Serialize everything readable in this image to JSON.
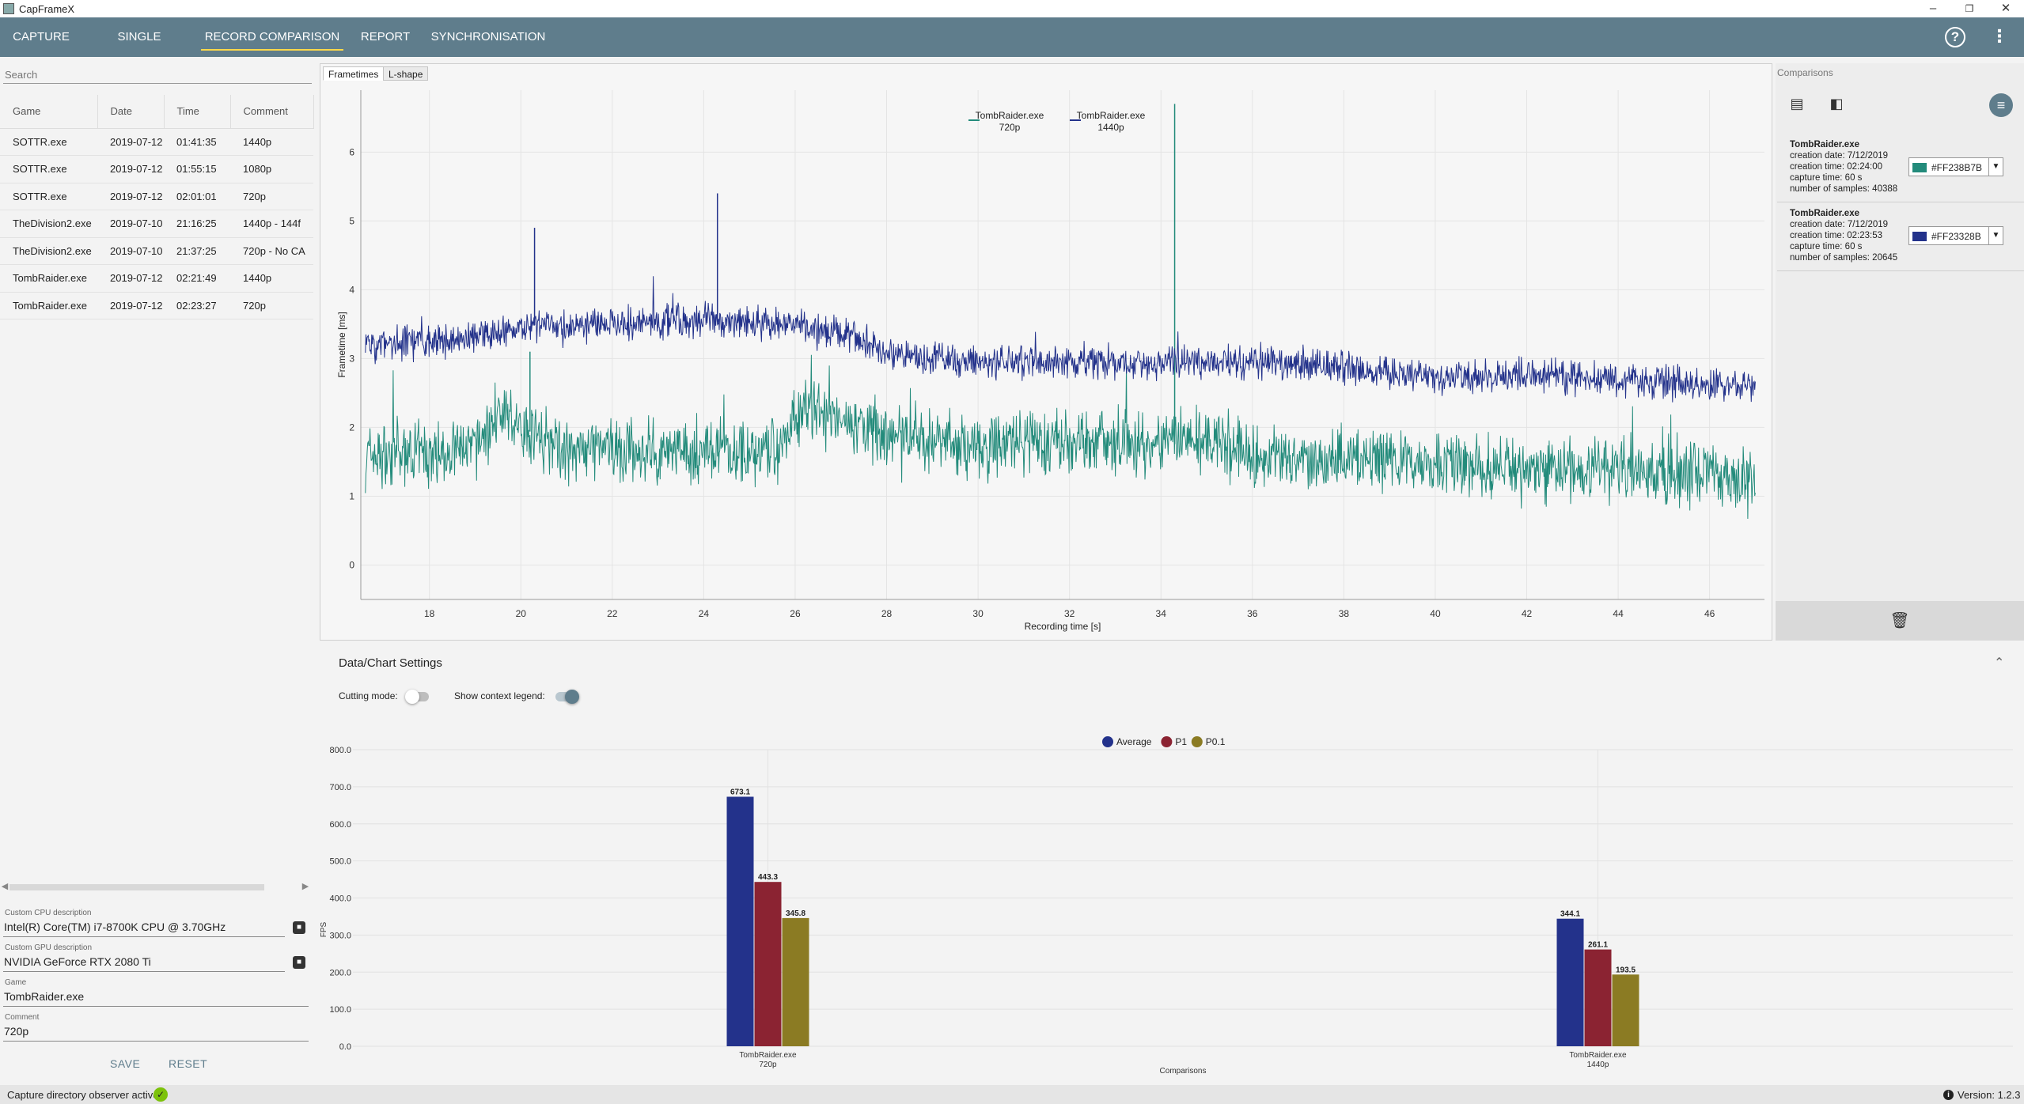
{
  "app": {
    "title": "CapFrameX",
    "version_label": "Version: 1.2.3"
  },
  "window": {
    "minimize": "–",
    "restore": "❐",
    "close": "✕"
  },
  "nav": {
    "tabs": [
      "CAPTURE",
      "SINGLE RECORD",
      "RECORD COMPARISON",
      "REPORT",
      "SYNCHRONISATION"
    ],
    "active": "RECORD COMPARISON",
    "help_icon": "?",
    "menu_icon": "⋮"
  },
  "left": {
    "search_placeholder": "Search",
    "columns": [
      "Game",
      "Date",
      "Time",
      "Comment"
    ],
    "records": [
      [
        "SOTTR.exe",
        "2019-07-12",
        "01:41:35",
        "1440p"
      ],
      [
        "SOTTR.exe",
        "2019-07-12",
        "01:55:15",
        "1080p"
      ],
      [
        "SOTTR.exe",
        "2019-07-12",
        "02:01:01",
        "720p"
      ],
      [
        "TheDivision2.exe",
        "2019-07-10",
        "21:16:25",
        "1440p - 144f"
      ],
      [
        "TheDivision2.exe",
        "2019-07-10",
        "21:37:25",
        "720p - No CA"
      ],
      [
        "TombRaider.exe",
        "2019-07-12",
        "02:21:49",
        "1440p"
      ],
      [
        "TombRaider.exe",
        "2019-07-12",
        "02:23:27",
        "720p"
      ]
    ],
    "scroll_left": "◀",
    "scroll_right": "▶",
    "cpu_label": "Custom CPU description",
    "cpu_value": "Intel(R) Core(TM) i7-8700K CPU @ 3.70GHz",
    "gpu_label": "Custom GPU description",
    "gpu_value": "NVIDIA GeForce RTX 2080 Ti",
    "game_label": "Game",
    "game_value": "TombRaider.exe",
    "comment_label": "Comment",
    "comment_value": "720p",
    "save": "SAVE",
    "reset": "RESET"
  },
  "chart_tabs": [
    "Frametimes",
    "L-shape"
  ],
  "comparisons": {
    "title": "Comparisons",
    "items": [
      {
        "name": "TombRaider.exe",
        "creation": "creation date: 7/12/2019",
        "capture_time": "creation time: 02:24:00",
        "duration": "capture time: 60 s",
        "samples": "number of samples: 40388",
        "color_hex": "#FF238B7B",
        "color": "#238B7B"
      },
      {
        "name": "TombRaider.exe",
        "creation": "creation date: 7/12/2019",
        "capture_time": "creation time: 02:23:53",
        "duration": "capture time: 60 s",
        "samples": "number of samples: 20645",
        "color_hex": "#FF23328B",
        "color": "#23328B"
      }
    ]
  },
  "settings": {
    "title": "Data/Chart Settings",
    "cutting_mode": "Cutting mode:",
    "cutting_on": false,
    "show_legend": "Show context legend:",
    "legend_on": true
  },
  "status": {
    "observer": "Capture directory observer active:"
  },
  "chart_data": [
    {
      "type": "line",
      "title": "",
      "xlabel": "Recording time [s]",
      "ylabel": "Frametime [ms]",
      "xlim": [
        16.5,
        47.2
      ],
      "ylim": [
        -0.5,
        6.9
      ],
      "x_ticks": [
        18,
        20,
        22,
        24,
        26,
        28,
        30,
        32,
        34,
        36,
        38,
        40,
        42,
        44,
        46
      ],
      "y_ticks": [
        0,
        1,
        2,
        3,
        4,
        5,
        6
      ],
      "grid": true,
      "legend": "top-center",
      "series": [
        {
          "name": "TombRaider.exe 720p",
          "color": "#238B7B",
          "x": [
            16.6,
            18,
            19,
            19.5,
            20,
            21,
            22,
            24,
            25.5,
            26.2,
            27,
            28,
            30,
            32,
            34.2,
            35,
            36,
            38,
            40,
            42,
            44,
            46,
            47
          ],
          "y": [
            1.6,
            1.6,
            1.7,
            2.2,
            2.0,
            1.7,
            1.65,
            1.65,
            1.65,
            2.3,
            2.1,
            1.9,
            1.75,
            1.8,
            1.75,
            1.8,
            1.6,
            1.5,
            1.5,
            1.4,
            1.4,
            1.35,
            1.3
          ],
          "spikes": [
            {
              "x": 34.3,
              "y": 6.7
            },
            {
              "x": 20.2,
              "y": 3.1
            }
          ]
        },
        {
          "name": "TombRaider.exe 1440p",
          "color": "#23328B",
          "x": [
            16.6,
            18,
            19,
            20,
            21,
            22,
            23,
            24,
            25,
            26,
            27,
            28,
            29,
            30,
            32,
            34,
            36,
            38,
            40,
            42,
            44,
            46,
            47
          ],
          "y": [
            3.2,
            3.25,
            3.3,
            3.5,
            3.45,
            3.5,
            3.55,
            3.55,
            3.5,
            3.5,
            3.35,
            3.1,
            3.0,
            2.95,
            2.95,
            2.95,
            2.95,
            2.9,
            2.7,
            2.75,
            2.7,
            2.6,
            2.6
          ],
          "spikes": [
            {
              "x": 20.3,
              "y": 4.9
            },
            {
              "x": 24.3,
              "y": 5.4
            }
          ]
        }
      ]
    },
    {
      "type": "bar",
      "xlabel": "Comparisons",
      "ylabel": "FPS",
      "ylim": [
        0,
        800
      ],
      "y_ticks": [
        0,
        100,
        200,
        300,
        400,
        500,
        600,
        700,
        800
      ],
      "y_tick_labels": [
        "0.0",
        "100.0",
        "200.0",
        "300.0",
        "400.0",
        "500.0",
        "600.0",
        "700.0",
        "800.0"
      ],
      "legend": "top-center",
      "categories": [
        "TombRaider.exe 720p",
        "TombRaider.exe 1440p"
      ],
      "category_lines": [
        [
          "TombRaider.exe",
          "720p"
        ],
        [
          "TombRaider.exe",
          "1440p"
        ]
      ],
      "series": [
        {
          "name": "Average",
          "color": "#23328B",
          "values": [
            673.1,
            344.1
          ],
          "labels": [
            "673.1",
            "344.1"
          ]
        },
        {
          "name": "P1",
          "color": "#8B2332",
          "values": [
            443.3,
            261.1
          ],
          "labels": [
            "443.3",
            "261.1"
          ]
        },
        {
          "name": "P0.1",
          "color": "#8B7B23",
          "values": [
            345.8,
            193.5
          ],
          "labels": [
            "345.8",
            "193.5"
          ]
        }
      ]
    }
  ]
}
